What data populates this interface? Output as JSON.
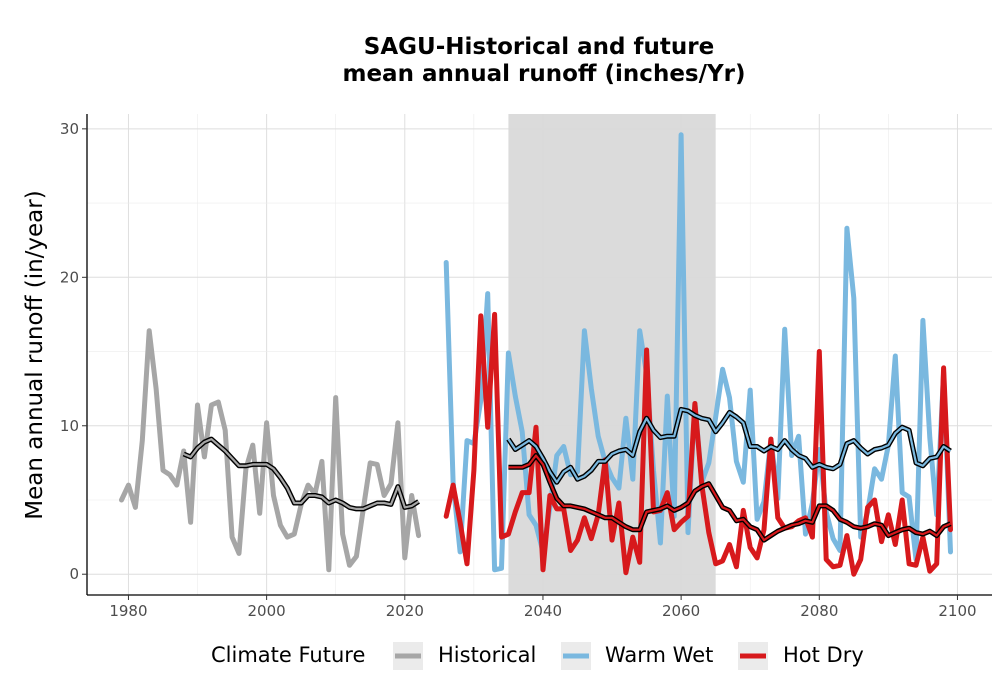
{
  "chart_data": {
    "type": "line",
    "title_line1": "SAGU-Historical and future",
    "title_line2": "mean annual runoff (inches/Yr)",
    "xlabel": "",
    "ylabel": "Mean annual runoff (in/year)",
    "xlim": [
      1974,
      2105
    ],
    "ylim": [
      -1.4,
      31
    ],
    "x_ticks": [
      1980,
      2000,
      2020,
      2040,
      2060,
      2080,
      2100
    ],
    "y_ticks": [
      0,
      10,
      20,
      30
    ],
    "grid": true,
    "shaded_period": [
      2035,
      2065
    ],
    "shade_color": "#d9d9d9",
    "legend": {
      "title": "Climate Future",
      "position": "bottom",
      "entries": [
        {
          "label": "Historical",
          "color": "#a6a6a6"
        },
        {
          "label": "Warm Wet",
          "color": "#7ab8df"
        },
        {
          "label": "Hot Dry",
          "color": "#d7191c"
        }
      ]
    },
    "series": [
      {
        "name": "Historical",
        "color": "#a6a6a6",
        "x": [
          1979,
          1980,
          1981,
          1982,
          1983,
          1984,
          1985,
          1986,
          1987,
          1988,
          1989,
          1990,
          1991,
          1992,
          1993,
          1994,
          1995,
          1996,
          1997,
          1998,
          1999,
          2000,
          2001,
          2002,
          2003,
          2004,
          2005,
          2006,
          2007,
          2008,
          2009,
          2010,
          2011,
          2012,
          2013,
          2014,
          2015,
          2016,
          2017,
          2018,
          2019,
          2020,
          2021,
          2022
        ],
        "values": [
          5.0,
          6.0,
          4.5,
          9.0,
          16.4,
          12.5,
          7.0,
          6.7,
          6.0,
          8.3,
          3.5,
          11.4,
          7.9,
          11.4,
          11.6,
          9.7,
          2.5,
          1.4,
          7.1,
          8.7,
          4.1,
          10.2,
          5.3,
          3.3,
          2.5,
          2.7,
          4.7,
          6.0,
          5.4,
          7.6,
          0.3,
          11.9,
          2.7,
          0.6,
          1.2,
          4.4,
          7.5,
          7.4,
          5.3,
          6.1,
          10.2,
          1.1,
          5.3,
          2.6
        ]
      },
      {
        "name": "Warm Wet",
        "color": "#7ab8df",
        "x": [
          2026,
          2027,
          2028,
          2029,
          2030,
          2031,
          2032,
          2033,
          2034,
          2035,
          2036,
          2037,
          2038,
          2039,
          2040,
          2041,
          2042,
          2043,
          2044,
          2045,
          2046,
          2047,
          2048,
          2049,
          2050,
          2051,
          2052,
          2053,
          2054,
          2055,
          2056,
          2057,
          2058,
          2059,
          2060,
          2061,
          2062,
          2063,
          2064,
          2065,
          2066,
          2067,
          2068,
          2069,
          2070,
          2071,
          2072,
          2073,
          2074,
          2075,
          2076,
          2077,
          2078,
          2079,
          2080,
          2081,
          2082,
          2083,
          2084,
          2085,
          2086,
          2087,
          2088,
          2089,
          2090,
          2091,
          2092,
          2093,
          2094,
          2095,
          2096,
          2097,
          2098,
          2099
        ],
        "values": [
          21.0,
          6.2,
          1.5,
          9.0,
          8.8,
          11.7,
          18.9,
          0.3,
          0.4,
          14.9,
          12.0,
          9.6,
          4.0,
          3.3,
          1.5,
          4.5,
          8.0,
          8.6,
          6.7,
          6.9,
          16.4,
          12.5,
          9.3,
          7.6,
          6.5,
          5.8,
          10.5,
          6.4,
          16.4,
          13.5,
          7.0,
          2.1,
          12.0,
          3.9,
          29.6,
          2.8,
          11.5,
          6.2,
          7.5,
          10.6,
          13.8,
          11.9,
          7.6,
          6.2,
          12.4,
          3.7,
          4.9,
          9.1,
          5.1,
          16.5,
          8.0,
          9.3,
          2.7,
          4.8,
          8.4,
          4.2,
          2.4,
          1.6,
          23.3,
          18.6,
          2.5,
          4.2,
          7.1,
          6.4,
          8.7,
          14.7,
          5.5,
          5.2,
          1.0,
          17.1,
          9.2,
          4.0,
          13.6,
          1.5
        ]
      },
      {
        "name": "Hot Dry",
        "color": "#d7191c",
        "x": [
          2026,
          2027,
          2028,
          2029,
          2030,
          2031,
          2032,
          2033,
          2034,
          2035,
          2036,
          2037,
          2038,
          2039,
          2040,
          2041,
          2042,
          2043,
          2044,
          2045,
          2046,
          2047,
          2048,
          2049,
          2050,
          2051,
          2052,
          2053,
          2054,
          2055,
          2056,
          2057,
          2058,
          2059,
          2060,
          2061,
          2062,
          2063,
          2064,
          2065,
          2066,
          2067,
          2068,
          2069,
          2070,
          2071,
          2072,
          2073,
          2074,
          2075,
          2076,
          2077,
          2078,
          2079,
          2080,
          2081,
          2082,
          2083,
          2084,
          2085,
          2086,
          2087,
          2088,
          2089,
          2090,
          2091,
          2092,
          2093,
          2094,
          2095,
          2096,
          2097,
          2098,
          2099
        ],
        "values": [
          3.9,
          6.0,
          3.5,
          0.7,
          7.0,
          17.4,
          9.9,
          17.5,
          2.5,
          2.7,
          4.2,
          5.5,
          5.5,
          9.9,
          0.3,
          5.3,
          4.4,
          4.4,
          1.6,
          2.3,
          3.8,
          2.4,
          4.0,
          7.7,
          2.3,
          4.8,
          0.1,
          2.5,
          0.8,
          15.1,
          4.2,
          4.3,
          5.5,
          3.0,
          3.5,
          3.9,
          11.5,
          6.0,
          2.8,
          0.7,
          0.9,
          2.0,
          0.5,
          4.3,
          1.8,
          1.1,
          3.0,
          9.1,
          3.8,
          3.1,
          3.2,
          3.6,
          3.8,
          2.5,
          15.0,
          1.0,
          0.5,
          0.6,
          2.6,
          0.0,
          1.0,
          4.5,
          5.0,
          2.2,
          4.0,
          2.0,
          5.0,
          0.7,
          0.6,
          2.5,
          0.2,
          0.7,
          13.9,
          3.0
        ]
      },
      {
        "name": "Historical rolling mean",
        "color": "#a6a6a6",
        "x": [
          1988,
          1989,
          1990,
          1991,
          1992,
          1993,
          1994,
          1995,
          1996,
          1997,
          1998,
          1999,
          2000,
          2001,
          2002,
          2003,
          2004,
          2005,
          2006,
          2007,
          2008,
          2009,
          2010,
          2011,
          2012,
          2013,
          2014,
          2015,
          2016,
          2017,
          2018,
          2019,
          2020,
          2021,
          2022
        ],
        "values": [
          8.1,
          7.9,
          8.5,
          8.9,
          9.1,
          8.7,
          8.3,
          7.8,
          7.3,
          7.3,
          7.4,
          7.4,
          7.4,
          7.1,
          6.5,
          5.8,
          4.8,
          4.8,
          5.3,
          5.3,
          5.2,
          4.8,
          5.0,
          4.8,
          4.5,
          4.4,
          4.4,
          4.6,
          4.8,
          4.8,
          4.7,
          5.9,
          4.5,
          4.6,
          4.9
        ]
      },
      {
        "name": "Warm Wet rolling mean",
        "color": "#7ab8df",
        "x": [
          2035,
          2036,
          2037,
          2038,
          2039,
          2040,
          2041,
          2042,
          2043,
          2044,
          2045,
          2046,
          2047,
          2048,
          2049,
          2050,
          2051,
          2052,
          2053,
          2054,
          2055,
          2056,
          2057,
          2058,
          2059,
          2060,
          2061,
          2062,
          2063,
          2064,
          2065,
          2066,
          2067,
          2068,
          2069,
          2070,
          2071,
          2072,
          2073,
          2074,
          2075,
          2076,
          2077,
          2078,
          2079,
          2080,
          2081,
          2082,
          2083,
          2084,
          2085,
          2086,
          2087,
          2088,
          2089,
          2090,
          2091,
          2092,
          2093,
          2094,
          2095,
          2096,
          2097,
          2098,
          2099
        ],
        "values": [
          9.1,
          8.4,
          8.7,
          9.0,
          8.6,
          7.8,
          6.9,
          6.2,
          6.9,
          7.2,
          6.4,
          6.6,
          7.0,
          7.6,
          7.6,
          8.1,
          8.3,
          8.4,
          8.0,
          9.6,
          10.5,
          9.7,
          9.2,
          9.3,
          9.3,
          11.1,
          11.0,
          10.7,
          10.5,
          10.4,
          9.6,
          10.2,
          10.9,
          10.6,
          10.2,
          8.6,
          8.6,
          8.3,
          8.6,
          8.4,
          9.0,
          8.4,
          8.0,
          7.8,
          7.2,
          7.4,
          7.2,
          7.1,
          7.4,
          8.8,
          9.0,
          8.5,
          8.1,
          8.4,
          8.5,
          8.7,
          9.5,
          9.9,
          9.7,
          7.5,
          7.3,
          7.8,
          7.9,
          8.6,
          8.3
        ]
      },
      {
        "name": "Hot Dry rolling mean",
        "color": "#d7191c",
        "x": [
          2035,
          2036,
          2037,
          2038,
          2039,
          2040,
          2041,
          2042,
          2043,
          2044,
          2045,
          2046,
          2047,
          2048,
          2049,
          2050,
          2051,
          2052,
          2053,
          2054,
          2055,
          2056,
          2057,
          2058,
          2059,
          2060,
          2061,
          2062,
          2063,
          2064,
          2065,
          2066,
          2067,
          2068,
          2069,
          2070,
          2071,
          2072,
          2073,
          2074,
          2075,
          2076,
          2077,
          2078,
          2079,
          2080,
          2081,
          2082,
          2083,
          2084,
          2085,
          2086,
          2087,
          2088,
          2089,
          2090,
          2091,
          2092,
          2093,
          2094,
          2095,
          2096,
          2097,
          2098,
          2099
        ],
        "values": [
          7.2,
          7.2,
          7.2,
          7.4,
          8.0,
          7.4,
          6.2,
          5.1,
          4.6,
          4.6,
          4.5,
          4.4,
          4.2,
          4.0,
          3.8,
          3.8,
          3.5,
          3.2,
          3.0,
          3.0,
          4.2,
          4.3,
          4.4,
          4.6,
          4.3,
          4.5,
          4.8,
          5.6,
          5.9,
          6.1,
          5.3,
          4.5,
          4.3,
          3.6,
          3.7,
          3.2,
          3.0,
          2.3,
          2.6,
          2.9,
          3.1,
          3.3,
          3.4,
          3.6,
          3.5,
          4.6,
          4.6,
          4.3,
          3.7,
          3.5,
          3.2,
          3.1,
          3.2,
          3.4,
          3.3,
          2.6,
          2.8,
          3.0,
          3.1,
          2.8,
          2.7,
          2.9,
          2.6,
          3.2,
          3.4
        ]
      }
    ]
  }
}
